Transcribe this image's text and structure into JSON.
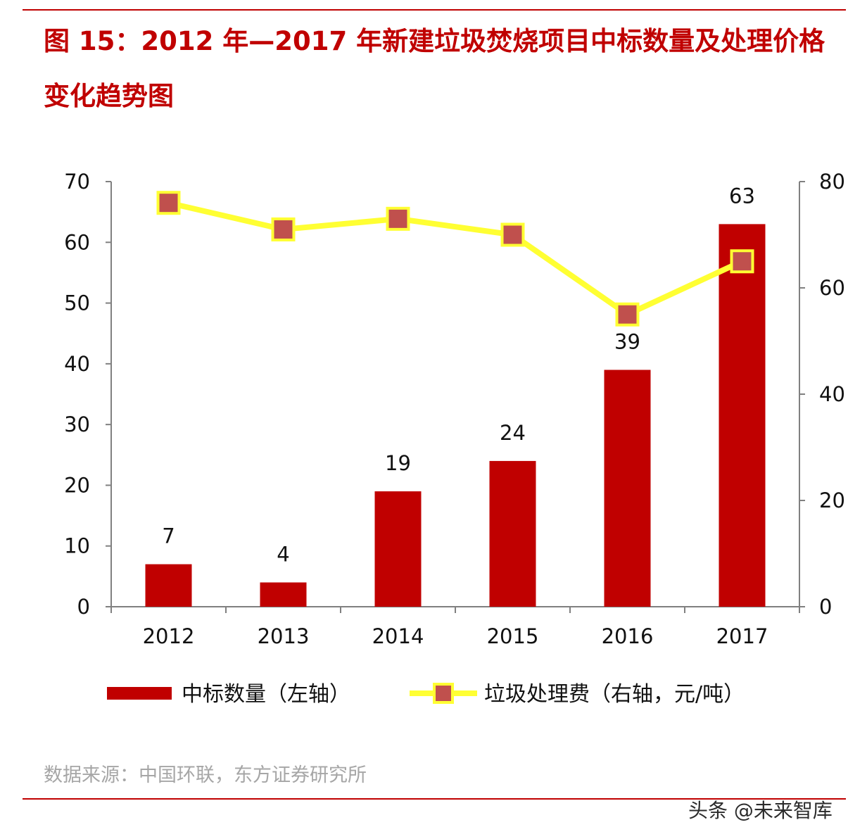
{
  "title": "图 15：2012 年—2017 年新建垃圾焚烧项目中标数量及处理价格变化趋势图",
  "source": "数据来源：中国环联，东方证券研究所",
  "watermark": "头条 @未来智库",
  "colors": {
    "accent": "#c00000",
    "bar": "#c00000",
    "line": "#ffff33",
    "marker": "#c0504d",
    "axis": "#808080"
  },
  "chart_data": {
    "type": "bar",
    "categories": [
      "2012",
      "2013",
      "2014",
      "2015",
      "2016",
      "2017"
    ],
    "series": [
      {
        "name": "中标数量（左轴）",
        "type": "bar",
        "axis": "left",
        "values": [
          7,
          4,
          19,
          24,
          39,
          63
        ]
      },
      {
        "name": "垃圾处理费（右轴，元/吨）",
        "type": "line",
        "axis": "right",
        "values": [
          76,
          71,
          73,
          70,
          55,
          65
        ]
      }
    ],
    "data_labels": [
      "7",
      "4",
      "19",
      "24",
      "39",
      "63"
    ],
    "y_left": {
      "min": 0,
      "max": 70,
      "ticks": [
        "0",
        "10",
        "20",
        "30",
        "40",
        "50",
        "60",
        "70"
      ]
    },
    "y_right": {
      "min": 0,
      "max": 80,
      "ticks": [
        "0",
        "20",
        "40",
        "60",
        "80"
      ]
    },
    "legend_position": "bottom",
    "grid": false
  }
}
